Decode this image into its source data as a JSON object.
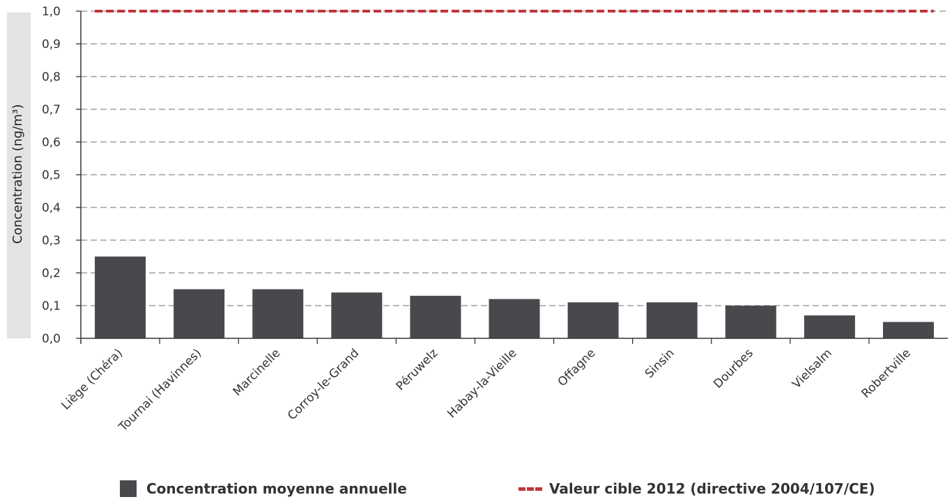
{
  "chart_data": {
    "type": "bar",
    "categories": [
      "Liège (Chéra)",
      "Tournai (Havinnes)",
      "Marcinelle",
      "Corroy-le-Grand",
      "Péruwelz",
      "Habay-la-Vieille",
      "Offagne",
      "Sinsin",
      "Dourbes",
      "Vielsalm",
      "Robertville"
    ],
    "series": [
      {
        "name": "Concentration moyenne annuelle",
        "type": "bar",
        "color": "#48484d",
        "values": [
          0.25,
          0.15,
          0.15,
          0.14,
          0.13,
          0.12,
          0.11,
          0.11,
          0.1,
          0.07,
          0.05
        ]
      },
      {
        "name": "Valeur cible 2012 (directive 2004/107/CE)",
        "type": "line",
        "style": "dashed",
        "color": "#c0343c",
        "values": [
          1.0,
          1.0,
          1.0,
          1.0,
          1.0,
          1.0,
          1.0,
          1.0,
          1.0,
          1.0,
          1.0
        ]
      }
    ],
    "ylabel": "Concentration (ng/m³)",
    "xlabel": "",
    "ylim": [
      0,
      1.0
    ],
    "yticks": [
      0.0,
      0.1,
      0.2,
      0.3,
      0.4,
      0.5,
      0.6,
      0.7,
      0.8,
      0.9,
      1.0
    ],
    "ytick_labels": [
      "0,0",
      "0,1",
      "0,2",
      "0,3",
      "0,4",
      "0,5",
      "0,6",
      "0,7",
      "0,8",
      "0,9",
      "1,0"
    ],
    "grid": "horizontal dashed",
    "legend_position": "bottom"
  },
  "legend": {
    "bar_label": "Concentration moyenne annuelle",
    "line_label": "Valeur cible 2012 (directive 2004/107/CE)"
  },
  "colors": {
    "bar": "#48484d",
    "target_line": "#c0343c",
    "grid": "#8c8c8c",
    "axis": "#333333",
    "ylabel_band": "#e3e3e3"
  }
}
